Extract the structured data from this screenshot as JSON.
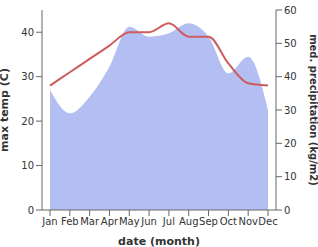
{
  "chart_data": {
    "type": "line",
    "categories": [
      "Jan",
      "Feb",
      "Mar",
      "Apr",
      "May",
      "Jun",
      "Jul",
      "Aug",
      "Sep",
      "Oct",
      "Nov",
      "Dec"
    ],
    "x_label": "date (month)",
    "y_label": "max temp (C)",
    "y2_label": "med. precipitation (kg/m2)",
    "ylim": [
      0,
      45
    ],
    "yticks": [
      0,
      10,
      20,
      30,
      40
    ],
    "y2lim": [
      0,
      60
    ],
    "y2ticks": [
      0,
      10,
      20,
      30,
      40,
      50,
      60
    ],
    "grid": false,
    "series": [
      {
        "name": "max temp",
        "type": "line",
        "color": "#cd5c5c",
        "values": [
          28,
          31,
          34,
          37,
          40,
          40,
          42,
          39,
          39,
          33,
          28.5,
          28
        ]
      },
      {
        "name": "med. precipitation",
        "type": "area",
        "axis": "y2",
        "color": "#b3bff2",
        "values": [
          36,
          29,
          34,
          43,
          55,
          52,
          53,
          56,
          52,
          41,
          46,
          30
        ]
      }
    ]
  }
}
